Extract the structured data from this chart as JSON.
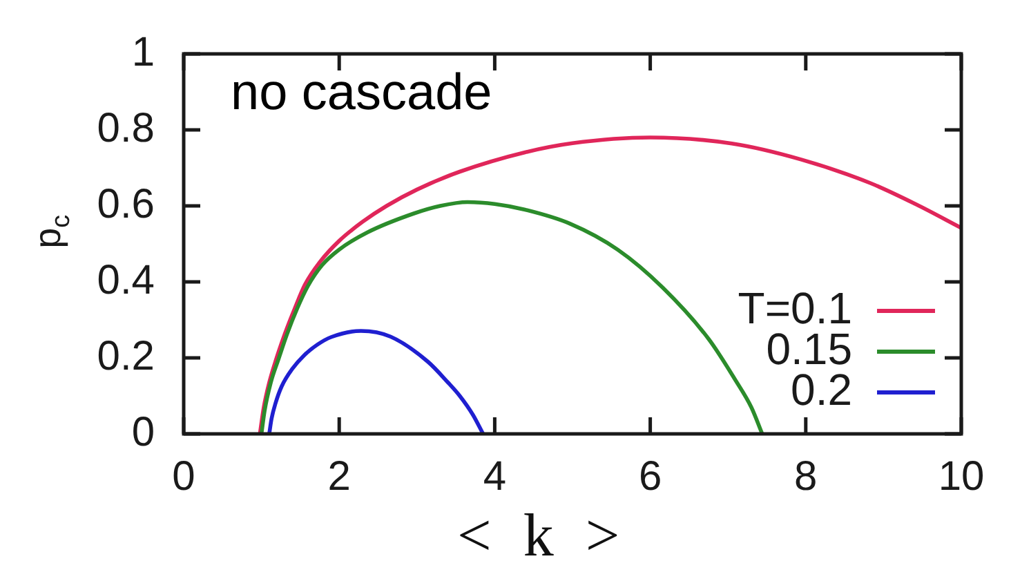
{
  "chart_data": {
    "type": "line",
    "xlabel": "< k >",
    "ylabel": "p$_{c}$",
    "annotations": [
      "no cascade"
    ],
    "xlim": [
      0,
      10
    ],
    "ylim": [
      0,
      1
    ],
    "xticks": [
      0,
      2,
      4,
      6,
      8,
      10
    ],
    "yticks": [
      0,
      0.2,
      0.4,
      0.6,
      0.8,
      1
    ],
    "legend": "bottom right",
    "marker": "none",
    "line_style": "solid",
    "series": [
      {
        "name": "T=0.1",
        "color": "#e0265a",
        "x": [
          0.98,
          1.03,
          1.1,
          1.19,
          1.3,
          1.43,
          1.56,
          1.75,
          2.0,
          2.3,
          2.61,
          3.0,
          3.55,
          4.39,
          5.0,
          6.0,
          7.05,
          7.94,
          8.83,
          9.41,
          10
        ],
        "values": [
          0,
          0.07,
          0.135,
          0.197,
          0.263,
          0.331,
          0.393,
          0.452,
          0.508,
          0.558,
          0.6,
          0.643,
          0.69,
          0.741,
          0.765,
          0.78,
          0.764,
          0.722,
          0.66,
          0.605,
          0.542
        ]
      },
      {
        "name": "0.15",
        "color": "#2b8c2b",
        "x": [
          1.0,
          1.04,
          1.12,
          1.22,
          1.33,
          1.46,
          1.6,
          1.78,
          2.0,
          2.36,
          2.96,
          3.3,
          3.65,
          4.0,
          4.39,
          4.97,
          5.58,
          6.16,
          6.75,
          7.1,
          7.3,
          7.44
        ],
        "values": [
          0,
          0.06,
          0.135,
          0.197,
          0.263,
          0.33,
          0.39,
          0.444,
          0.485,
          0.53,
          0.58,
          0.6,
          0.61,
          0.605,
          0.59,
          0.553,
          0.485,
          0.385,
          0.25,
          0.14,
          0.07,
          0
        ]
      },
      {
        "name": "0.2",
        "color": "#1f1fd0",
        "x": [
          1.1,
          1.13,
          1.18,
          1.26,
          1.4,
          1.55,
          1.72,
          1.9,
          2.28,
          2.66,
          3.14,
          3.4,
          3.55,
          3.72,
          3.85
        ],
        "values": [
          0,
          0.04,
          0.08,
          0.125,
          0.172,
          0.207,
          0.235,
          0.255,
          0.271,
          0.256,
          0.19,
          0.135,
          0.1,
          0.05,
          0
        ]
      }
    ]
  }
}
